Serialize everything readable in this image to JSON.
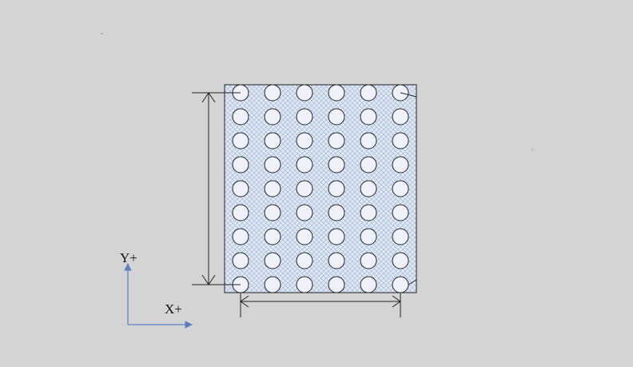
{
  "diagram": {
    "grid": {
      "rows": 9,
      "columns": 6
    },
    "axes": {
      "y_label": "Y+",
      "x_label": "X+",
      "color": "#5b7fbf"
    },
    "plate_fill_color": "#dfe8f3",
    "hatch_color": "#9fb4d6",
    "hole_fill_color": "#eef2f8",
    "line_color": "#222222"
  }
}
